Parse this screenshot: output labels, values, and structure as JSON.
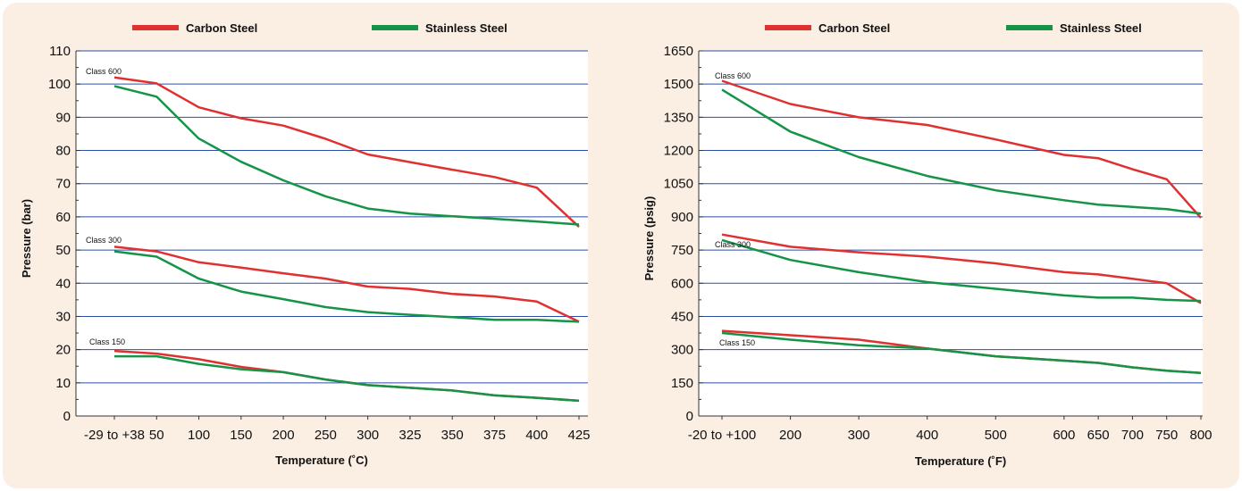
{
  "chart_data": [
    {
      "type": "line",
      "title": "",
      "xlabel": "Temperature (˚C)",
      "ylabel": "Pressure (bar)",
      "categories": [
        "-29 to +38",
        "50",
        "100",
        "150",
        "200",
        "250",
        "300",
        "325",
        "350",
        "375",
        "400",
        "425"
      ],
      "ylim": [
        0,
        110
      ],
      "yticks": [
        "0",
        "10",
        "20",
        "30",
        "40",
        "50",
        "60",
        "70",
        "80",
        "90",
        "100",
        "110"
      ],
      "grid": true,
      "legend": "top",
      "legend_entries": [
        {
          "name": "Carbon Steel",
          "color": "#e03030"
        },
        {
          "name": "Stainless Steel",
          "color": "#159447"
        }
      ],
      "series": [
        {
          "group": "Class 600",
          "material": "Carbon Steel",
          "values": [
            102,
            100.2,
            93,
            89.7,
            87.5,
            83.5,
            78.8,
            76.5,
            74.2,
            72,
            68.8,
            57
          ]
        },
        {
          "group": "Class 600",
          "material": "Stainless Steel",
          "values": [
            99.4,
            96.2,
            83.6,
            76.6,
            71,
            66.2,
            62.5,
            61,
            60.2,
            59.4,
            58.6,
            57.7
          ]
        },
        {
          "group": "Class 300",
          "material": "Carbon Steel",
          "values": [
            51,
            49.6,
            46.3,
            44.7,
            43,
            41.4,
            39,
            38.3,
            36.8,
            36,
            34.5,
            28.4
          ]
        },
        {
          "group": "Class 300",
          "material": "Stainless Steel",
          "values": [
            49.6,
            48,
            41.4,
            37.5,
            35.2,
            32.8,
            31.3,
            30.5,
            29.8,
            29,
            29,
            28.4
          ]
        },
        {
          "group": "Class 150",
          "material": "Carbon Steel",
          "values": [
            19.6,
            18.8,
            17.1,
            14.8,
            13.2,
            11,
            9.3,
            8.5,
            7.7,
            6.2,
            5.5,
            4.6
          ]
        },
        {
          "group": "Class 150",
          "material": "Stainless Steel",
          "values": [
            18,
            18,
            15.7,
            14.1,
            13.2,
            11,
            9.3,
            8.5,
            7.7,
            6.2,
            5.5,
            4.6
          ]
        }
      ],
      "class_labels": [
        "Class 600",
        "Class 300",
        "Class 150"
      ]
    },
    {
      "type": "line",
      "title": "",
      "xlabel": "Temperature (˚F)",
      "ylabel": "Pressure (psig)",
      "categories": [
        "-20 to +100",
        "200",
        "300",
        "400",
        "500",
        "600",
        "650",
        "700",
        "750",
        "800"
      ],
      "ylim": [
        0,
        1650
      ],
      "yticks": [
        "0",
        "150",
        "300",
        "450",
        "600",
        "750",
        "900",
        "1050",
        "1200",
        "1350",
        "1500",
        "1650"
      ],
      "grid": true,
      "legend": "top",
      "legend_entries": [
        {
          "name": "Carbon Steel",
          "color": "#e03030"
        },
        {
          "name": "Stainless Steel",
          "color": "#159447"
        }
      ],
      "series": [
        {
          "group": "Class 600",
          "material": "Carbon Steel",
          "x": [
            100,
            200,
            300,
            400,
            500,
            600,
            650,
            700,
            750,
            800
          ],
          "values": [
            1515,
            1410,
            1350,
            1315,
            1250,
            1180,
            1165,
            1115,
            1070,
            895
          ]
        },
        {
          "group": "Class 600",
          "material": "Stainless Steel",
          "x": [
            100,
            200,
            300,
            400,
            500,
            600,
            650,
            700,
            750,
            800
          ],
          "values": [
            1475,
            1285,
            1170,
            1085,
            1020,
            975,
            955,
            945,
            935,
            915
          ]
        },
        {
          "group": "Class 300",
          "material": "Carbon Steel",
          "x": [
            100,
            200,
            300,
            400,
            500,
            600,
            650,
            700,
            750,
            800
          ],
          "values": [
            820,
            765,
            740,
            720,
            690,
            650,
            640,
            620,
            600,
            510
          ]
        },
        {
          "group": "Class 300",
          "material": "Stainless Steel",
          "x": [
            100,
            200,
            300,
            400,
            500,
            600,
            650,
            700,
            750,
            800
          ],
          "values": [
            795,
            705,
            650,
            605,
            575,
            545,
            535,
            535,
            525,
            520
          ]
        },
        {
          "group": "Class 150",
          "material": "Carbon Steel",
          "x": [
            100,
            200,
            300,
            400,
            500,
            600,
            650,
            700,
            750,
            800
          ],
          "values": [
            385,
            365,
            345,
            305,
            270,
            250,
            240,
            220,
            205,
            195
          ]
        },
        {
          "group": "Class 150",
          "material": "Stainless Steel",
          "x": [
            100,
            200,
            300,
            400,
            500,
            600,
            650,
            700,
            750,
            800
          ],
          "values": [
            375,
            345,
            320,
            305,
            270,
            250,
            240,
            220,
            205,
            195
          ]
        }
      ],
      "class_labels": [
        "Class 600",
        "Class 300",
        "Class 150"
      ]
    }
  ]
}
